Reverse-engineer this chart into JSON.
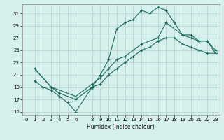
{
  "xlabel": "Humidex (Indice chaleur)",
  "bg_color": "#d6f0ee",
  "grid_color": "#b8d8d4",
  "line_color": "#1a6b5a",
  "xlim": [
    -0.5,
    23.5
  ],
  "ylim": [
    14.5,
    32.5
  ],
  "xticks": [
    0,
    1,
    2,
    3,
    4,
    5,
    6,
    8,
    9,
    10,
    11,
    12,
    13,
    14,
    15,
    16,
    17,
    18,
    19,
    20,
    21,
    22,
    23
  ],
  "yticks": [
    15,
    17,
    19,
    21,
    23,
    25,
    27,
    29,
    31
  ],
  "line1_x": [
    1,
    2,
    3,
    4,
    5,
    6,
    8,
    9,
    10,
    11,
    12,
    13,
    14,
    15,
    16,
    17,
    18,
    19,
    20,
    21,
    22,
    23
  ],
  "line1_y": [
    20,
    19,
    18.5,
    17.5,
    16.5,
    15,
    19,
    21,
    23.5,
    28.5,
    29.5,
    30,
    31.5,
    31,
    32,
    31.5,
    29.5,
    27.5,
    27,
    26.5,
    26.5,
    24.5
  ],
  "line2_x": [
    1,
    3,
    4,
    6,
    8,
    9,
    10,
    11,
    12,
    13,
    14,
    15,
    16,
    17,
    18,
    19,
    20,
    21,
    22,
    23
  ],
  "line2_y": [
    22,
    19,
    18,
    17,
    19,
    19.5,
    21,
    22,
    23,
    24,
    25,
    25.5,
    26.5,
    27,
    27,
    26,
    25.5,
    25,
    24.5,
    24.5
  ],
  "line3_x": [
    1,
    3,
    6,
    8,
    9,
    10,
    11,
    12,
    14,
    16,
    17,
    19,
    20,
    21,
    22,
    23
  ],
  "line3_y": [
    22,
    19,
    17.5,
    19.5,
    20.5,
    22,
    23.5,
    24,
    26,
    27,
    29.5,
    27.5,
    27.5,
    26.5,
    26.5,
    25
  ]
}
